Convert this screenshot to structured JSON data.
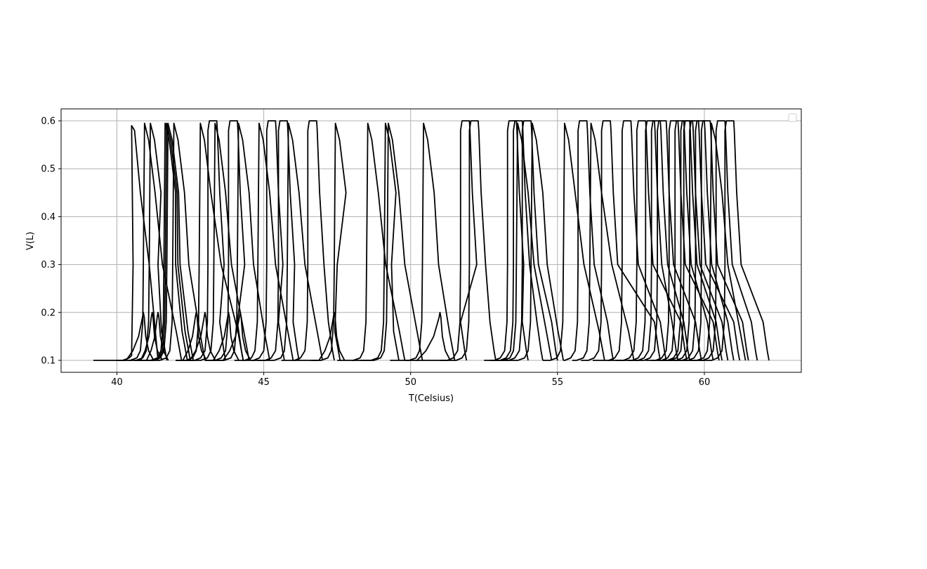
{
  "chart_data": {
    "type": "line",
    "title": "",
    "xlabel": "T(Celsius)",
    "ylabel": "V(L)",
    "xlim": [
      38.1,
      63.3
    ],
    "ylim": [
      0.075,
      0.625
    ],
    "xticks": [
      40,
      45,
      50,
      55,
      60
    ],
    "yticks": [
      0.1,
      0.2,
      0.3,
      0.4,
      0.5,
      0.6
    ],
    "xtick_labels": [
      "40",
      "45",
      "50",
      "55",
      "60"
    ],
    "ytick_labels": [
      "0.1",
      "0.2",
      "0.3",
      "0.4",
      "0.5",
      "0.6"
    ],
    "grid": true,
    "legend": {
      "location": "top-right",
      "entries": []
    },
    "line_color": "#000000",
    "grid_color": "#b0b0b0",
    "loops": [
      {
        "base": 39.2,
        "onset": 40.5,
        "fall_end": 41.4,
        "peak": 0.595,
        "kind": "collapse"
      },
      {
        "base": 40.2,
        "onset": 40.9,
        "fall_end": 42.2,
        "peak": 0.595,
        "kind": "ramp"
      },
      {
        "base": 40.4,
        "onset": 41.1,
        "fall_end": 41.7,
        "peak": 0.595,
        "kind": "ramp"
      },
      {
        "base": 40.6,
        "onset": 41.6,
        "fall_end": 42.4,
        "peak": 0.595,
        "kind": "ramp"
      },
      {
        "base": 40.7,
        "onset": 41.65,
        "fall_end": 42.5,
        "peak": 0.595,
        "kind": "ramp"
      },
      {
        "base": 40.8,
        "onset": 41.7,
        "fall_end": 42.6,
        "peak": 0.595,
        "kind": "ramp"
      },
      {
        "base": 41.0,
        "onset": 41.9,
        "fall_end": 43.0,
        "peak": 0.595,
        "kind": "ramp"
      },
      {
        "base": 42.0,
        "onset": 42.8,
        "fall_end": 44.3,
        "peak": 0.595,
        "kind": "ramp"
      },
      {
        "base": 42.2,
        "onset": 43.1,
        "fall_end": 43.7,
        "peak": 0.6,
        "kind": "flat"
      },
      {
        "base": 42.4,
        "onset": 43.3,
        "fall_end": 44.5,
        "peak": 0.595,
        "kind": "ramp"
      },
      {
        "base": 43.0,
        "onset": 43.8,
        "fall_end": 44.3,
        "peak": 0.6,
        "kind": "flat"
      },
      {
        "base": 43.2,
        "onset": 44.1,
        "fall_end": 45.2,
        "peak": 0.595,
        "kind": "ramp"
      },
      {
        "base": 44.0,
        "onset": 44.8,
        "fall_end": 46.0,
        "peak": 0.595,
        "kind": "ramp"
      },
      {
        "base": 44.3,
        "onset": 45.1,
        "fall_end": 45.7,
        "peak": 0.6,
        "kind": "flat"
      },
      {
        "base": 44.6,
        "onset": 45.5,
        "fall_end": 46.2,
        "peak": 0.6,
        "kind": "flat"
      },
      {
        "base": 44.8,
        "onset": 45.8,
        "fall_end": 47.0,
        "peak": 0.595,
        "kind": "ramp"
      },
      {
        "base": 45.6,
        "onset": 46.5,
        "fall_end": 47.4,
        "peak": 0.6,
        "kind": "flat"
      },
      {
        "base": 46.0,
        "onset": 47.4,
        "fall_end": 47.6,
        "peak": 0.595,
        "kind": "ramp"
      },
      {
        "base": 47.5,
        "onset": 48.5,
        "fall_end": 49.8,
        "peak": 0.595,
        "kind": "ramp"
      },
      {
        "base": 48.0,
        "onset": 49.1,
        "fall_end": 49.6,
        "peak": 0.595,
        "kind": "ramp"
      },
      {
        "base": 48.3,
        "onset": 49.2,
        "fall_end": 50.4,
        "peak": 0.595,
        "kind": "ramp"
      },
      {
        "base": 49.3,
        "onset": 50.4,
        "fall_end": 51.5,
        "peak": 0.595,
        "kind": "ramp"
      },
      {
        "base": 50.2,
        "onset": 51.7,
        "fall_end": 51.9,
        "peak": 0.6,
        "kind": "flat"
      },
      {
        "base": 51.0,
        "onset": 52.0,
        "fall_end": 52.9,
        "peak": 0.6,
        "kind": "flat"
      },
      {
        "base": 52.5,
        "onset": 53.3,
        "fall_end": 54.0,
        "peak": 0.6,
        "kind": "flat"
      },
      {
        "base": 52.7,
        "onset": 53.5,
        "fall_end": 54.5,
        "peak": 0.6,
        "kind": "flat"
      },
      {
        "base": 52.8,
        "onset": 53.6,
        "fall_end": 54.8,
        "peak": 0.595,
        "kind": "ramp"
      },
      {
        "base": 52.9,
        "onset": 53.8,
        "fall_end": 55.0,
        "peak": 0.6,
        "kind": "flat"
      },
      {
        "base": 53.0,
        "onset": 54.1,
        "fall_end": 55.2,
        "peak": 0.595,
        "kind": "ramp"
      },
      {
        "base": 54.5,
        "onset": 55.2,
        "fall_end": 56.6,
        "peak": 0.595,
        "kind": "ramp"
      },
      {
        "base": 55.2,
        "onset": 55.7,
        "fall_end": 56.9,
        "peak": 0.6,
        "kind": "flat"
      },
      {
        "base": 55.5,
        "onset": 56.1,
        "fall_end": 57.6,
        "peak": 0.595,
        "kind": "ramp"
      },
      {
        "base": 55.8,
        "onset": 56.5,
        "fall_end": 58.5,
        "peak": 0.6,
        "kind": "flat"
      },
      {
        "base": 56.2,
        "onset": 57.2,
        "fall_end": 58.7,
        "peak": 0.6,
        "kind": "flat"
      },
      {
        "base": 56.7,
        "onset": 57.7,
        "fall_end": 59.4,
        "peak": 0.6,
        "kind": "flat"
      },
      {
        "base": 57.0,
        "onset": 58.0,
        "fall_end": 59.1,
        "peak": 0.6,
        "kind": "flat"
      },
      {
        "base": 57.4,
        "onset": 58.2,
        "fall_end": 59.5,
        "peak": 0.6,
        "kind": "flat"
      },
      {
        "base": 57.6,
        "onset": 58.4,
        "fall_end": 59.9,
        "peak": 0.6,
        "kind": "flat"
      },
      {
        "base": 58.0,
        "onset": 58.8,
        "fall_end": 60.5,
        "peak": 0.6,
        "kind": "flat"
      },
      {
        "base": 58.2,
        "onset": 59.0,
        "fall_end": 60.3,
        "peak": 0.6,
        "kind": "flat"
      },
      {
        "base": 58.4,
        "onset": 59.2,
        "fall_end": 60.6,
        "peak": 0.6,
        "kind": "flat"
      },
      {
        "base": 58.5,
        "onset": 59.3,
        "fall_end": 60.8,
        "peak": 0.6,
        "kind": "flat"
      },
      {
        "base": 58.6,
        "onset": 59.5,
        "fall_end": 61.2,
        "peak": 0.6,
        "kind": "flat"
      },
      {
        "base": 58.8,
        "onset": 59.7,
        "fall_end": 61.0,
        "peak": 0.6,
        "kind": "flat"
      },
      {
        "base": 59.0,
        "onset": 59.9,
        "fall_end": 61.5,
        "peak": 0.6,
        "kind": "flat"
      },
      {
        "base": 59.2,
        "onset": 60.2,
        "fall_end": 61.4,
        "peak": 0.595,
        "kind": "ramp"
      },
      {
        "base": 59.5,
        "onset": 60.4,
        "fall_end": 61.8,
        "peak": 0.6,
        "kind": "flat"
      },
      {
        "base": 59.8,
        "onset": 60.7,
        "fall_end": 62.2,
        "peak": 0.6,
        "kind": "flat"
      }
    ],
    "partial_curves": [
      {
        "start": 40.0,
        "end": 40.9,
        "peak": 0.2
      },
      {
        "start": 40.6,
        "end": 41.2,
        "peak": 0.2
      },
      {
        "start": 40.8,
        "end": 41.4,
        "peak": 0.2
      },
      {
        "start": 42.0,
        "end": 42.7,
        "peak": 0.2
      },
      {
        "start": 42.2,
        "end": 43.0,
        "peak": 0.2
      },
      {
        "start": 43.0,
        "end": 43.8,
        "peak": 0.2
      },
      {
        "start": 43.3,
        "end": 44.2,
        "peak": 0.2
      },
      {
        "start": 46.6,
        "end": 47.4,
        "peak": 0.2
      },
      {
        "start": 49.8,
        "end": 51.0,
        "peak": 0.2
      }
    ]
  }
}
